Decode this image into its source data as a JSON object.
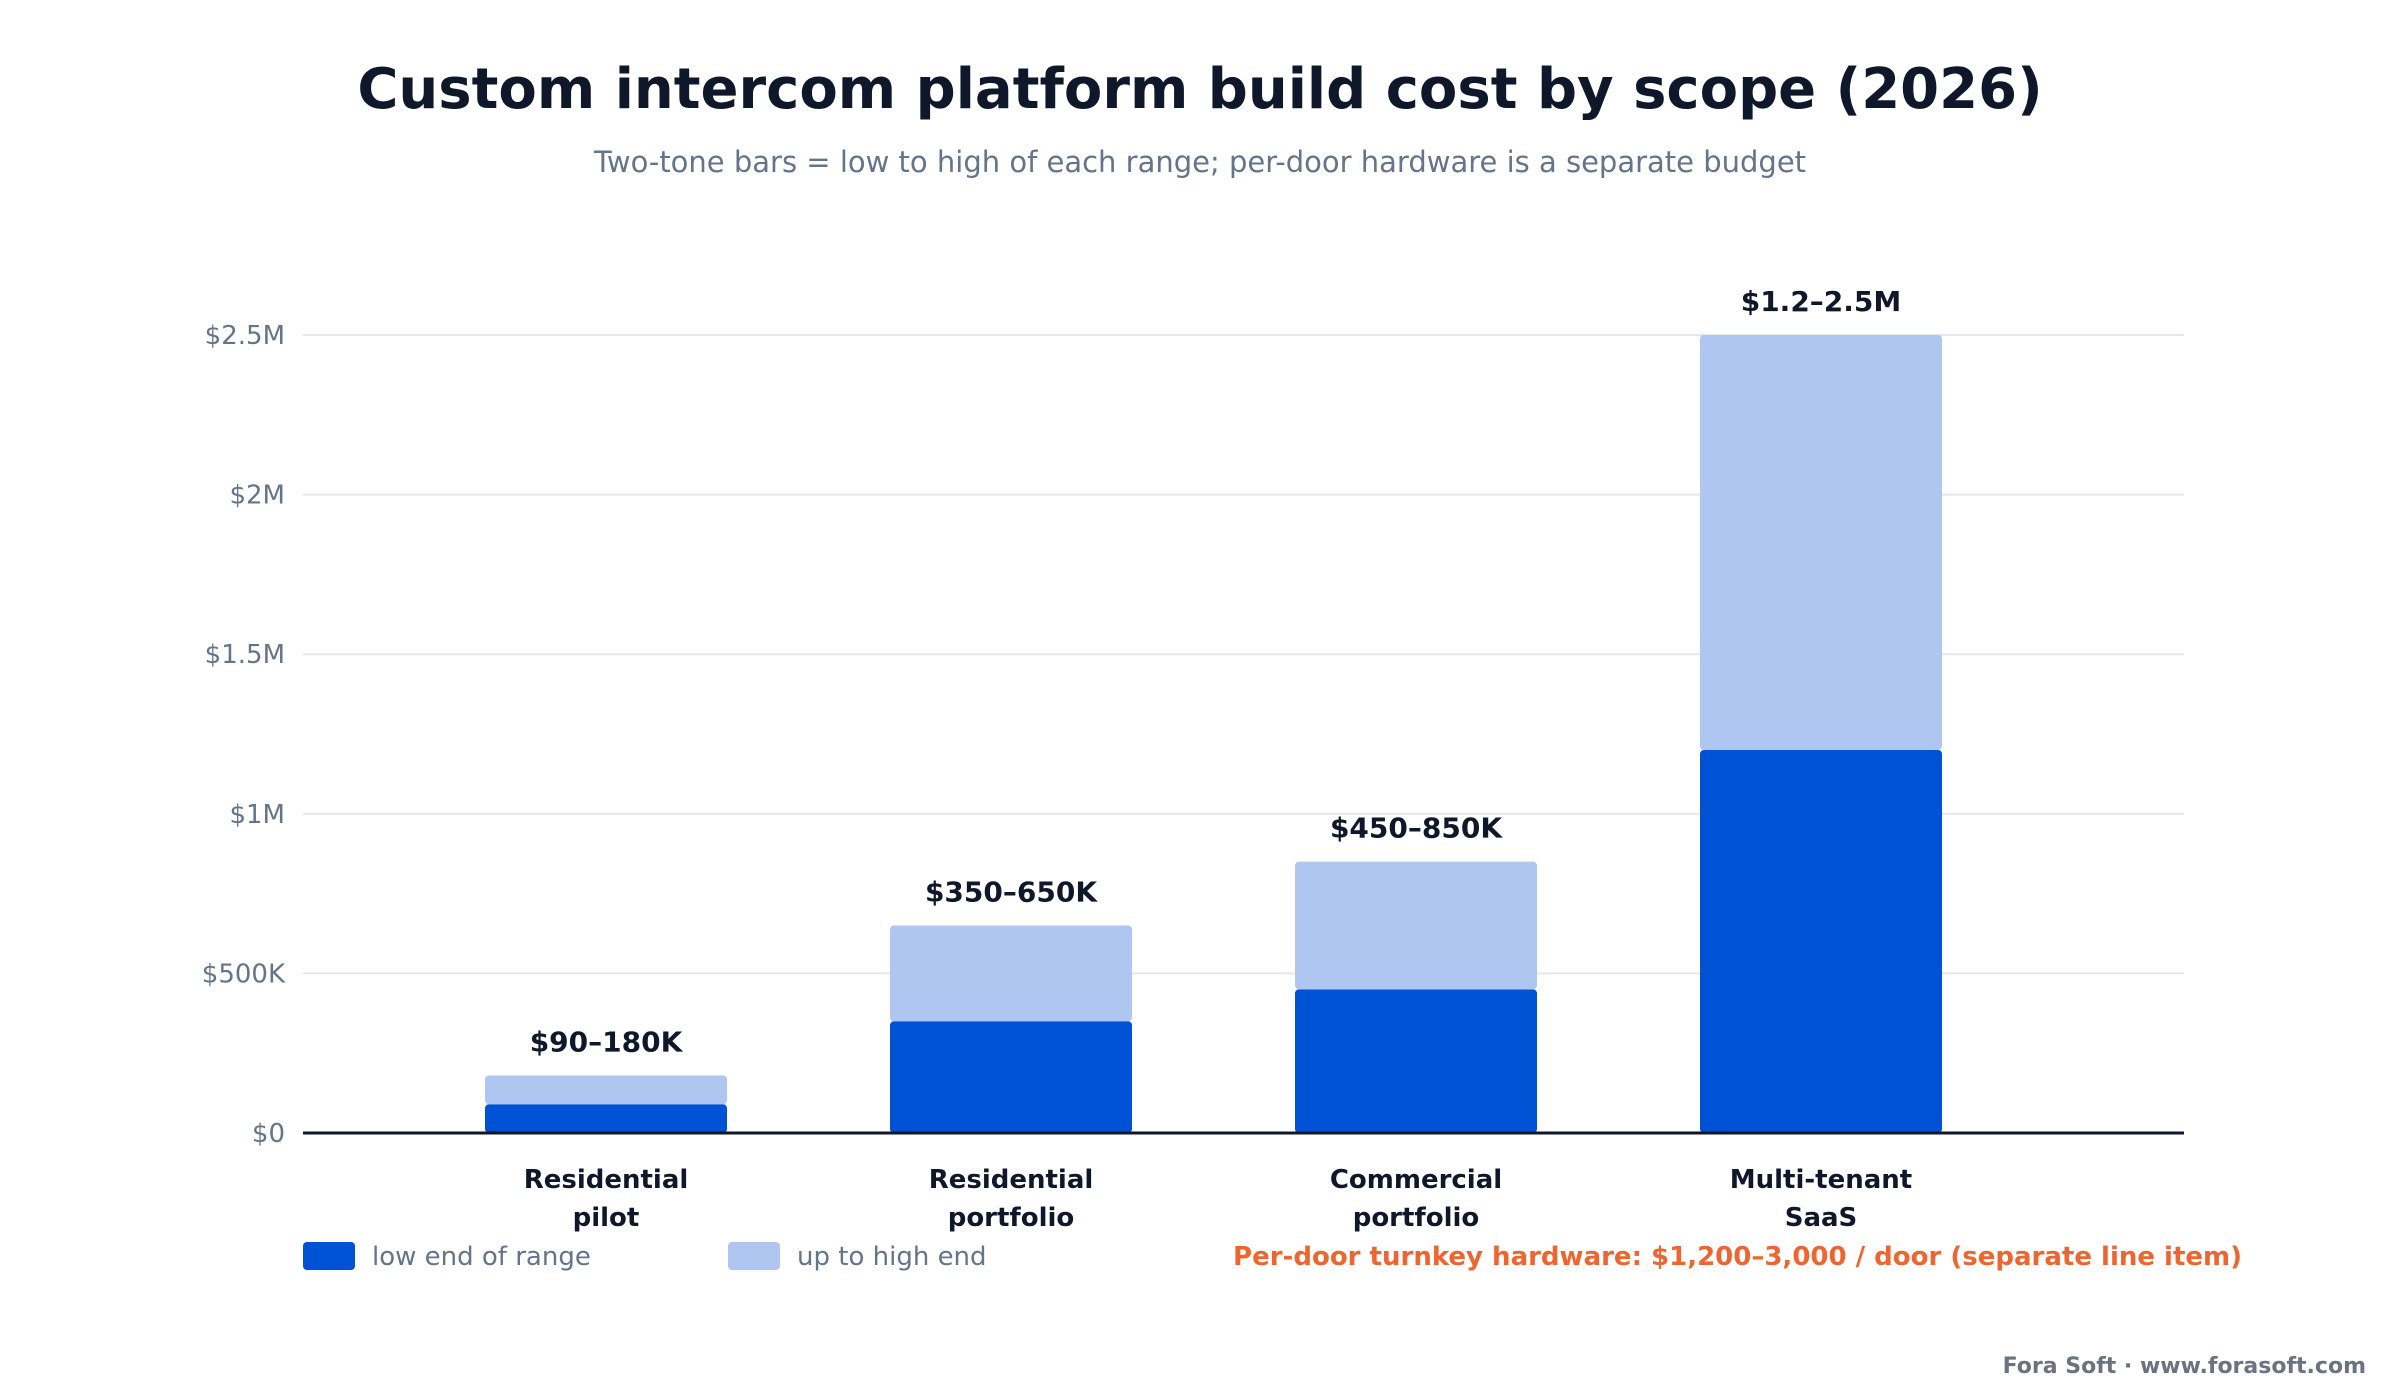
{
  "chart_data": {
    "type": "bar",
    "stacked": true,
    "title": "Custom intercom platform build cost by scope (2026)",
    "subtitle": "Two-tone bars = low to high of each range; per-door hardware is a separate budget",
    "categories": [
      [
        "Residential",
        "pilot"
      ],
      [
        "Residential",
        "portfolio"
      ],
      [
        "Commercial",
        "portfolio"
      ],
      [
        "Multi-tenant",
        "SaaS"
      ]
    ],
    "series": [
      {
        "name": "low end of range",
        "color": "#0052d4",
        "values": [
          90000,
          350000,
          450000,
          1200000
        ]
      },
      {
        "name": "up to high end",
        "color": "#aec6f0",
        "values": [
          90000,
          300000,
          400000,
          1300000
        ]
      }
    ],
    "range_labels": [
      "$90–180K",
      "$350–650K",
      "$450–850K",
      "$1.2–2.5M"
    ],
    "ylim": [
      0,
      2500000
    ],
    "yticks": [
      0,
      500000,
      1000000,
      1500000,
      2000000,
      2500000
    ],
    "ytick_labels": [
      "$0",
      "$500K",
      "$1M",
      "$1.5M",
      "$2M",
      "$2.5M"
    ],
    "grid": true,
    "legend_position": "bottom-left",
    "note": {
      "text": "Per-door turnkey hardware: $1,200–3,000 / door (separate line item)",
      "color": "#ef6530"
    },
    "credit": "Fora Soft · www.forasoft.com"
  }
}
